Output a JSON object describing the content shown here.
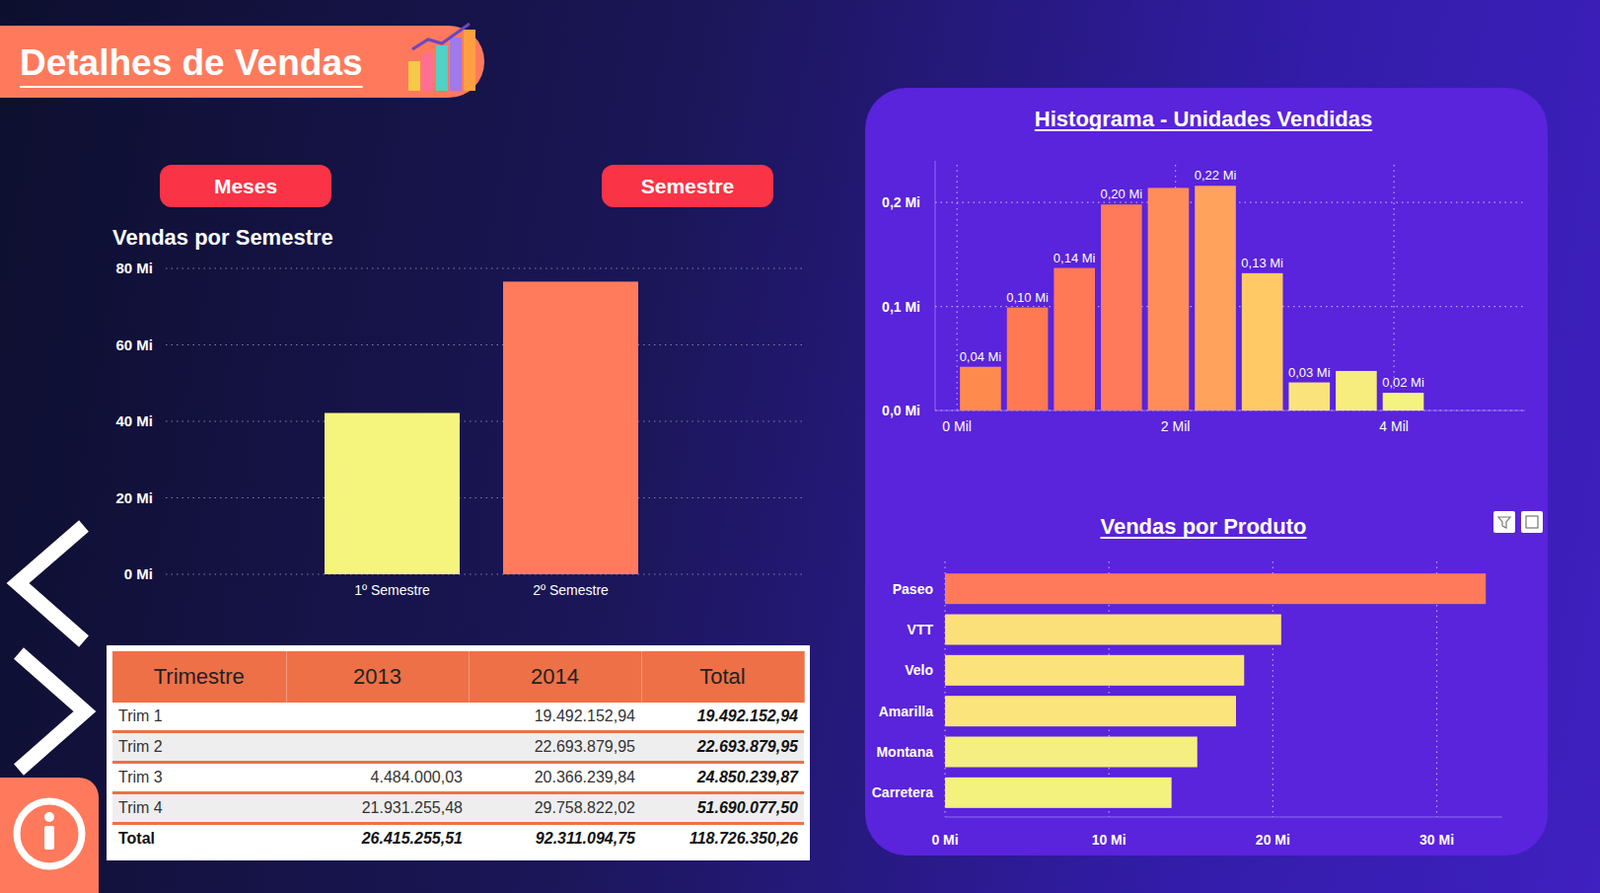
{
  "header": {
    "title": "Detalhes de Vendas"
  },
  "buttons": [
    "Meses",
    "Semestre"
  ],
  "chart_data": [
    {
      "type": "bar",
      "title": "Vendas por Semestre",
      "categories": [
        "1º Semestre",
        "2º Semestre"
      ],
      "values": [
        42.19,
        76.54
      ],
      "colors": [
        "#f5f57e",
        "#ff7b5c"
      ],
      "ylim": [
        0,
        80
      ],
      "yticks": [
        {
          "value": 0,
          "label": "0 Mi"
        },
        {
          "value": 20,
          "label": "20 Mi"
        },
        {
          "value": 40,
          "label": "40 Mi"
        },
        {
          "value": 60,
          "label": "60 Mi"
        },
        {
          "value": 80,
          "label": "80 Mi"
        }
      ],
      "grid": true
    },
    {
      "type": "histogram",
      "title": "Histograma - Unidades Vendidas",
      "bins": [
        0,
        0.43,
        0.86,
        1.29,
        1.72,
        2.15,
        2.58,
        3.01,
        3.44,
        3.87,
        4.3
      ],
      "values": [
        0.042,
        0.099,
        0.137,
        0.198,
        0.214,
        0.216,
        0.132,
        0.027,
        0.038,
        0.017
      ],
      "value_labels": [
        "0,04 Mi",
        "0,10 Mi",
        "0,14 Mi",
        "0,20 Mi",
        null,
        "0,22 Mi",
        "0,13 Mi",
        "0,03 Mi",
        null,
        "0,02 Mi"
      ],
      "data_labels": true,
      "colors": [
        "#ff8a4e",
        "#ff7a52",
        "#ff7956",
        "#ff7a5a",
        "#ff8d5a",
        "#ffa35c",
        "#ffc965",
        "#f9e37a",
        "#f6ed7e",
        "#f4f280"
      ],
      "xlim": [
        -0.2,
        5.2
      ],
      "xticks": [
        {
          "value": 0,
          "label": "0 Mil"
        },
        {
          "value": 2,
          "label": "2 Mil"
        },
        {
          "value": 4,
          "label": "4 Mil"
        }
      ],
      "ylim": [
        0,
        0.24
      ],
      "yticks": [
        {
          "value": 0,
          "label": "0,0 Mi"
        },
        {
          "value": 0.1,
          "label": "0,1 Mi"
        },
        {
          "value": 0.2,
          "label": "0,2 Mi"
        }
      ],
      "grid": true
    },
    {
      "type": "bar",
      "orientation": "horizontal",
      "title": "Vendas por Produto",
      "categories": [
        "Paseo",
        "VTT",
        "Velo",
        "Amarilla",
        "Montana",
        "Carretera"
      ],
      "values": [
        32.99,
        20.51,
        18.25,
        17.75,
        15.39,
        13.82
      ],
      "colors": [
        "#ff7a5a",
        "#fbe07a",
        "#fbe27a",
        "#fbe47b",
        "#f5ee80",
        "#f3f27f"
      ],
      "xlim": [
        0,
        34
      ],
      "xticks": [
        {
          "value": 0,
          "label": "0 Mi"
        },
        {
          "value": 10,
          "label": "10 Mi"
        },
        {
          "value": 20,
          "label": "20 Mi"
        },
        {
          "value": 30,
          "label": "30 Mi"
        }
      ],
      "grid": true
    }
  ],
  "table": {
    "columns": [
      "Trimestre",
      "2013",
      "2014",
      "Total"
    ],
    "rows": [
      [
        "Trim 1",
        null,
        "19.492.152,94",
        "19.492.152,94"
      ],
      [
        "Trim 2",
        null,
        "22.693.879,95",
        "22.693.879,95"
      ],
      [
        "Trim 3",
        "4.484.000,03",
        "20.366.239,84",
        "24.850.239,87"
      ],
      [
        "Trim 4",
        "21.931.255,48",
        "29.758.822,02",
        "51.690.077,50"
      ]
    ],
    "total": [
      "Total",
      "26.415.255,51",
      "92.311.094,75",
      "118.726.350,26"
    ]
  }
}
